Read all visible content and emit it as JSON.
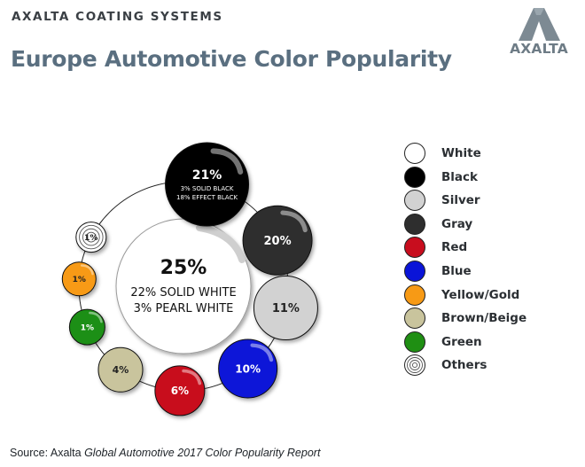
{
  "header": {
    "brand_line": "AXALTA COATING SYSTEMS",
    "title": "Europe Automotive Color Popularity",
    "logo_text": "AXALTA",
    "logo_color": "#7d8a93"
  },
  "source": {
    "prefix": "Source: Axalta ",
    "report": "Global Automotive 2017 Color Popularity Report"
  },
  "chart_data": {
    "type": "bubble",
    "title": "Europe Automotive Color Popularity",
    "center": {
      "category": "White",
      "value": 25,
      "label": "25%",
      "breakdown": [
        {
          "name": "SOLID WHITE",
          "value": 22,
          "label": "22% SOLID WHITE"
        },
        {
          "name": "PEARL WHITE",
          "value": 3,
          "label": "3% PEARL WHITE"
        }
      ]
    },
    "ring": [
      {
        "category": "Black",
        "value": 21,
        "label": "21%",
        "color": "#000000",
        "text_color": "#ffffff",
        "breakdown": [
          {
            "name": "SOLID BLACK",
            "value": 3,
            "label": "3% SOLID BLACK"
          },
          {
            "name": "EFFECT BLACK",
            "value": 18,
            "label": "18% EFFECT BLACK"
          }
        ]
      },
      {
        "category": "Gray",
        "value": 20,
        "label": "20%",
        "color": "#2e2e2e",
        "text_color": "#ffffff"
      },
      {
        "category": "Silver",
        "value": 11,
        "label": "11%",
        "color": "#d2d2d2",
        "text_color": "#222222"
      },
      {
        "category": "Blue",
        "value": 10,
        "label": "10%",
        "color": "#0a14d8",
        "text_color": "#ffffff"
      },
      {
        "category": "Red",
        "value": 6,
        "label": "6%",
        "color": "#c80d1e",
        "text_color": "#ffffff"
      },
      {
        "category": "Brown/Beige",
        "value": 4,
        "label": "4%",
        "color": "#c9c49d",
        "text_color": "#222222"
      },
      {
        "category": "Green",
        "value": 1,
        "label": "1%",
        "color": "#1f8f13",
        "text_color": "#ffffff"
      },
      {
        "category": "Yellow/Gold",
        "value": 1,
        "label": "1%",
        "color": "#f79a15",
        "text_color": "#222222"
      },
      {
        "category": "Others",
        "value": 1,
        "label": "1%",
        "color": "#ffffff",
        "text_color": "#222222",
        "pattern": "concentric-rings"
      }
    ],
    "legend": [
      {
        "label": "White",
        "color": "#ffffff"
      },
      {
        "label": "Black",
        "color": "#000000"
      },
      {
        "label": "Silver",
        "color": "#d2d2d2"
      },
      {
        "label": "Gray",
        "color": "#2e2e2e"
      },
      {
        "label": "Red",
        "color": "#c80d1e"
      },
      {
        "label": "Blue",
        "color": "#0a14d8"
      },
      {
        "label": "Yellow/Gold",
        "color": "#f79a15"
      },
      {
        "label": "Brown/Beige",
        "color": "#c9c49d"
      },
      {
        "label": "Green",
        "color": "#1f8f13"
      },
      {
        "label": "Others",
        "color": "#ffffff",
        "pattern": "concentric-rings"
      }
    ],
    "legend_position": "right"
  }
}
